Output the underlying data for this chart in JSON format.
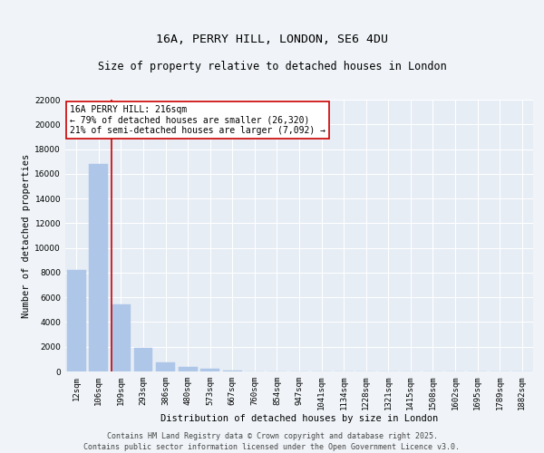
{
  "title_line1": "16A, PERRY HILL, LONDON, SE6 4DU",
  "title_line2": "Size of property relative to detached houses in London",
  "xlabel": "Distribution of detached houses by size in London",
  "ylabel": "Number of detached properties",
  "categories": [
    "12sqm",
    "106sqm",
    "199sqm",
    "293sqm",
    "386sqm",
    "480sqm",
    "573sqm",
    "667sqm",
    "760sqm",
    "854sqm",
    "947sqm",
    "1041sqm",
    "1134sqm",
    "1228sqm",
    "1321sqm",
    "1415sqm",
    "1508sqm",
    "1602sqm",
    "1695sqm",
    "1789sqm",
    "1882sqm"
  ],
  "values": [
    8200,
    16800,
    5400,
    1900,
    700,
    350,
    190,
    100,
    30,
    5,
    2,
    1,
    0,
    0,
    0,
    0,
    0,
    0,
    0,
    0,
    0
  ],
  "bar_color": "#aec6e8",
  "bar_edgecolor": "#aec6e8",
  "vline_x_index": 2,
  "vline_color": "#cc0000",
  "annotation_text": "16A PERRY HILL: 216sqm\n← 79% of detached houses are smaller (26,320)\n21% of semi-detached houses are larger (7,092) →",
  "annotation_box_color": "#ffffff",
  "annotation_box_edgecolor": "#cc0000",
  "ylim": [
    0,
    22000
  ],
  "yticks": [
    0,
    2000,
    4000,
    6000,
    8000,
    10000,
    12000,
    14000,
    16000,
    18000,
    20000,
    22000
  ],
  "bg_color": "#f0f4f8",
  "plot_bg_color": "#e6edf5",
  "grid_color": "#ffffff",
  "footer_line1": "Contains HM Land Registry data © Crown copyright and database right 2025.",
  "footer_line2": "Contains public sector information licensed under the Open Government Licence v3.0.",
  "title_fontsize": 9.5,
  "subtitle_fontsize": 8.5,
  "axis_label_fontsize": 7.5,
  "tick_fontsize": 6.5,
  "annotation_fontsize": 7,
  "footer_fontsize": 6
}
